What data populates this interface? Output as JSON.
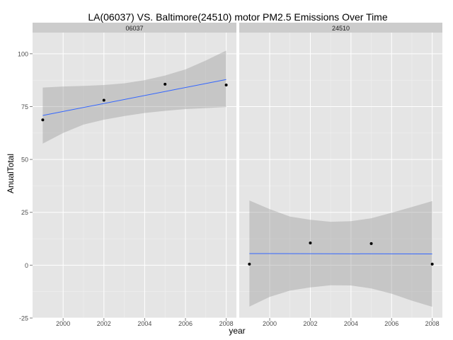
{
  "chart_data": {
    "type": "scatter",
    "title": "LA(06037) VS. Baltimore(24510) motor PM2.5 Emissions Over Time",
    "xlabel": "year",
    "ylabel": "AnualTotal",
    "xlim": [
      1998.5,
      2008.5
    ],
    "ylim": [
      -25,
      110
    ],
    "x_ticks": [
      2000,
      2002,
      2004,
      2006,
      2008
    ],
    "y_ticks": [
      -25,
      0,
      25,
      50,
      75,
      100
    ],
    "x_tick_labels": [
      "2000",
      "2002",
      "2004",
      "2006",
      "2008"
    ],
    "y_tick_labels": [
      "-25",
      "0",
      "25",
      "50",
      "75",
      "100"
    ],
    "grid": true,
    "facets": [
      {
        "label": "06037",
        "points": [
          {
            "x": 1999,
            "y": 68.7
          },
          {
            "x": 2002,
            "y": 78.0
          },
          {
            "x": 2005,
            "y": 85.6
          },
          {
            "x": 2008,
            "y": 85.2
          }
        ],
        "fit": {
          "x": [
            1999,
            2008
          ],
          "y": [
            70.8,
            87.8
          ],
          "color": "#3366FF"
        },
        "band": {
          "x": [
            1999,
            2000,
            2001,
            2002,
            2003,
            2004,
            2005,
            2006,
            2007,
            2008
          ],
          "upper": [
            84.0,
            84.5,
            84.8,
            85.2,
            86.0,
            87.5,
            89.7,
            92.6,
            96.8,
            101.5
          ],
          "lower": [
            57.5,
            62.5,
            66.5,
            68.8,
            70.5,
            72.0,
            73.0,
            73.8,
            74.3,
            74.8
          ]
        }
      },
      {
        "label": "24510",
        "points": [
          {
            "x": 1999,
            "y": 0.5
          },
          {
            "x": 2002,
            "y": 10.5
          },
          {
            "x": 2005,
            "y": 10.2
          },
          {
            "x": 2008,
            "y": 0.5
          }
        ],
        "fit": {
          "x": [
            1999,
            2008
          ],
          "y": [
            5.5,
            5.3
          ],
          "color": "#3366FF"
        },
        "band": {
          "x": [
            1999,
            2000,
            2001,
            2002,
            2003,
            2004,
            2005,
            2006,
            2007,
            2008
          ],
          "upper": [
            30.6,
            26.5,
            23.0,
            21.5,
            20.5,
            20.8,
            22.2,
            24.8,
            27.5,
            30.3
          ],
          "lower": [
            -19.6,
            -15.0,
            -12.0,
            -10.5,
            -9.5,
            -9.6,
            -11.0,
            -13.5,
            -16.8,
            -19.7
          ]
        }
      }
    ]
  }
}
